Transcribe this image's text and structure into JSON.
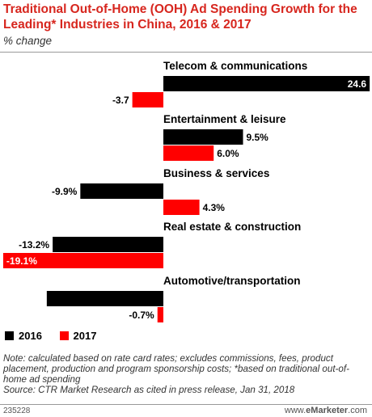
{
  "colors": {
    "series_2016": "#000000",
    "series_2017": "#ff0000",
    "title": "#d7261e"
  },
  "header": {
    "title": "Traditional Out-of-Home (OOH) Ad Spending Growth for the Leading* Industries in China, 2016 & 2017",
    "subtitle": "% change"
  },
  "legend": {
    "label_2016": "2016",
    "label_2017": "2017"
  },
  "notes": {
    "note": "Note: calculated based on rate card rates; excludes commissions, fees, product placement, production and program sponsorship costs; *based on traditional out-of-home ad spending",
    "source": "Source: CTR Market Research as cited in press release, Jan 31, 2018"
  },
  "footer": {
    "id": "235228",
    "brand_prefix": "www.",
    "brand_name": "eMarketer",
    "brand_suffix": ".com"
  },
  "chart_data": {
    "type": "bar",
    "orientation": "horizontal",
    "title": "Traditional Out-of-Home (OOH) Ad Spending Growth for the Leading* Industries in China, 2016 & 2017",
    "subtitle": "% change",
    "categories": [
      "Telecom & communications",
      "Entertainment & leisure",
      "Business & services",
      "Real estate & construction",
      "Automotive/transportation"
    ],
    "series": [
      {
        "name": "2016",
        "color": "#000000",
        "values": [
          24.6,
          9.5,
          -9.9,
          -13.2,
          -13.9
        ],
        "labels": [
          "24.6",
          "9.5%",
          "-9.9%",
          "-13.2%",
          ""
        ]
      },
      {
        "name": "2017",
        "color": "#ff0000",
        "values": [
          -3.7,
          6.0,
          4.3,
          -19.1,
          -0.7
        ],
        "labels": [
          "-3.7",
          "6.0%",
          "4.3%",
          "-19.1%",
          "-0.7%"
        ]
      }
    ],
    "xlim": [
      -19.1,
      24.6
    ],
    "legend_position": "bottom-left",
    "grid": false
  }
}
